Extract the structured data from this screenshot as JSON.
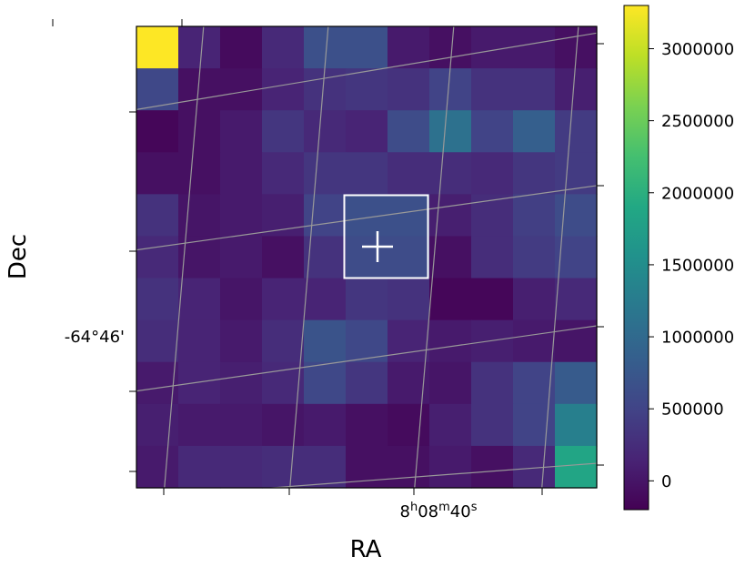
{
  "chart_data": {
    "type": "heatmap",
    "xlabel": "RA",
    "ylabel": "Dec",
    "x_tick_labels": [
      "",
      "",
      "8h08m40s",
      ""
    ],
    "y_tick_labels": [
      "",
      "",
      "-64°46'",
      ""
    ],
    "colorbar": {
      "colormap": "viridis",
      "range": [
        -200000,
        3300000
      ],
      "ticks": [
        0,
        500000,
        1000000,
        1500000,
        2000000,
        2500000,
        3000000
      ],
      "tick_labels": [
        "0",
        "500000",
        "1000000",
        "1500000",
        "2000000",
        "2500000",
        "3000000"
      ]
    },
    "grid": true,
    "grid_color": "#999999",
    "marker": "target crosshair with aperture box",
    "marker_color": "#ffffff",
    "rows": 11,
    "cols": 11,
    "values": [
      [
        3300000,
        150000,
        -100000,
        200000,
        650000,
        650000,
        50000,
        -50000,
        50000,
        50000,
        -50000
      ],
      [
        550000,
        -50000,
        -50000,
        150000,
        300000,
        350000,
        300000,
        500000,
        300000,
        300000,
        100000
      ],
      [
        -150000,
        -50000,
        50000,
        350000,
        200000,
        150000,
        600000,
        1100000,
        500000,
        850000,
        400000
      ],
      [
        -50000,
        -50000,
        50000,
        200000,
        350000,
        350000,
        250000,
        250000,
        200000,
        350000,
        400000
      ],
      [
        300000,
        0,
        50000,
        100000,
        500000,
        650000,
        650000,
        100000,
        250000,
        450000,
        600000
      ],
      [
        200000,
        0,
        50000,
        -50000,
        300000,
        600000,
        600000,
        -50000,
        250000,
        400000,
        500000
      ],
      [
        300000,
        150000,
        0,
        150000,
        150000,
        350000,
        300000,
        -150000,
        -150000,
        100000,
        200000
      ],
      [
        250000,
        150000,
        50000,
        250000,
        700000,
        550000,
        150000,
        50000,
        100000,
        50000,
        0
      ],
      [
        50000,
        150000,
        100000,
        200000,
        550000,
        350000,
        50000,
        0,
        300000,
        500000,
        800000
      ],
      [
        100000,
        50000,
        50000,
        0,
        50000,
        -50000,
        -100000,
        100000,
        300000,
        500000,
        1300000
      ],
      [
        50000,
        200000,
        200000,
        250000,
        250000,
        -50000,
        -50000,
        50000,
        -50000,
        200000,
        1850000
      ]
    ]
  }
}
